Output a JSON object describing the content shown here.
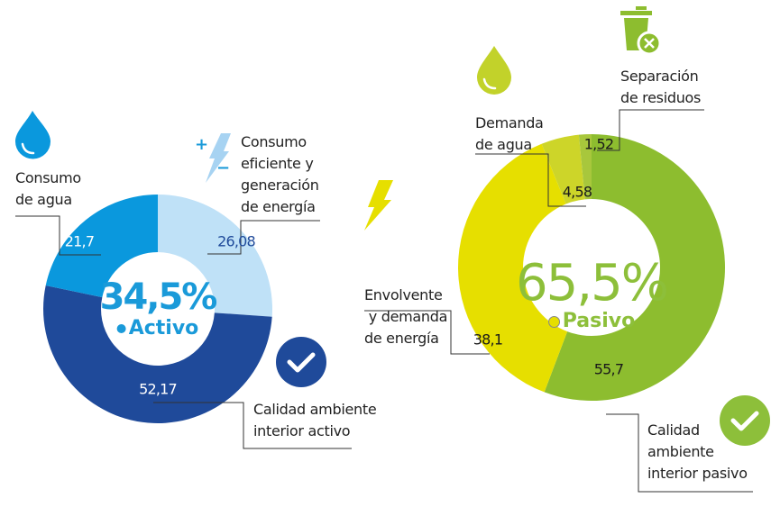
{
  "colors": {
    "activo_text": "#1a9ad9",
    "pasivo_text": "#8dbf3a",
    "check_activo": "#1f4a9a",
    "check_pasivo": "#8dbf3a"
  },
  "chart_data": [
    {
      "type": "pie",
      "style": "donut",
      "center_value": "34,5%",
      "center_label": "Activo",
      "slices": [
        {
          "label": "Consumo eficiente y generación de energía",
          "value": 26.08,
          "display": "26,08",
          "color": "#bfe1f7",
          "text_color": "#1f4a9a"
        },
        {
          "label": "Calidad ambiente interior activo",
          "value": 52.17,
          "display": "52,17",
          "color": "#1f4a9a",
          "text_color": "#ffffff"
        },
        {
          "label": "Consumo de agua",
          "value": 21.7,
          "display": "21,7",
          "color": "#0a98dd",
          "text_color": "#ffffff"
        }
      ]
    },
    {
      "type": "pie",
      "style": "donut",
      "center_value": "65,5%",
      "center_label": "Pasivo",
      "slices": [
        {
          "label": "Calidad ambiente interior pasivo",
          "value": 55.7,
          "display": "55,7",
          "color": "#8dbd2f",
          "text_color": "#1a1a1a"
        },
        {
          "label": "Envolvente y demanda de energía",
          "value": 38.1,
          "display": "38,1",
          "color": "#e6df00",
          "text_color": "#1a1a1a"
        },
        {
          "label": "Demanda de agua",
          "value": 4.58,
          "display": "4,58",
          "color": "#cdd529",
          "text_color": "#1a1a1a"
        },
        {
          "label": "Separación de residuos",
          "value": 1.52,
          "display": "1,52",
          "color": "#a8c73c",
          "text_color": "#1a1a1a"
        }
      ]
    }
  ],
  "labels": {
    "consumo_agua": [
      "Consumo",
      "de agua"
    ],
    "consumo_eficiente": [
      "Consumo",
      "eficiente y",
      "generación",
      "de energía"
    ],
    "calidad_activo": [
      "Calidad ambiente",
      "interior activo"
    ],
    "demanda_agua": [
      "Demanda",
      "de agua"
    ],
    "separacion": [
      "Separación",
      "de residuos"
    ],
    "envolvente": [
      "Envolvente",
      " y demanda",
      "de energía"
    ],
    "calidad_pasivo": [
      "Calidad",
      "ambiente",
      "interior pasivo"
    ]
  },
  "icons": {
    "plus": "+",
    "minus": "−"
  }
}
